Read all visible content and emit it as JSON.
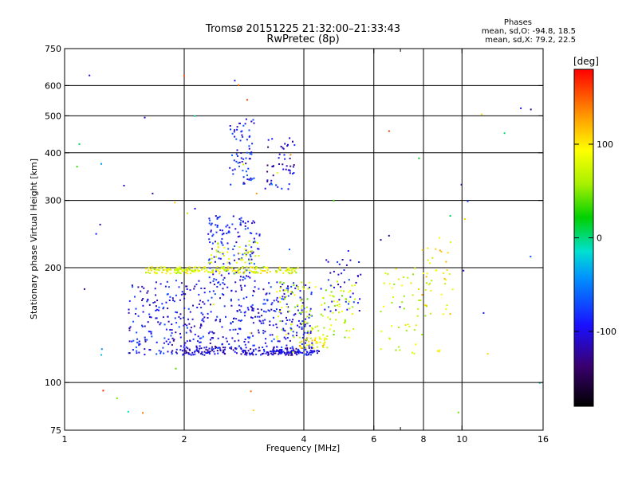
{
  "chart_data": {
    "type": "scatter",
    "title": "Tromsø 20151225 21:32:00–21:33:43",
    "subtitle": "RwPretec (8p)",
    "stats": {
      "heading": "Phases",
      "o_line": "mean, sd,O: -94.8, 18.5",
      "x_line": "mean, sd,X: 79.2, 22.5"
    },
    "xlabel": "Frequency [MHz]",
    "ylabel": "Stationary phase Virtual Height [km]",
    "x_scale": "log",
    "y_scale": "log",
    "xlim": [
      1,
      16
    ],
    "ylim": [
      75,
      750
    ],
    "x_ticks": [
      {
        "value": 1,
        "label": "1"
      },
      {
        "value": 2,
        "label": "2"
      },
      {
        "value": 4,
        "label": "4"
      },
      {
        "value": 6,
        "label": "6"
      },
      {
        "value": 8,
        "label": "8"
      },
      {
        "value": 10,
        "label": "10"
      },
      {
        "value": 16,
        "label": "16"
      }
    ],
    "x_minor_ticks": [
      7
    ],
    "x_gridlines": [
      2,
      4,
      6,
      8,
      10
    ],
    "y_ticks": [
      {
        "value": 75,
        "label": "75"
      },
      {
        "value": 100,
        "label": "100"
      },
      {
        "value": 200,
        "label": "200"
      },
      {
        "value": 300,
        "label": "300"
      },
      {
        "value": 400,
        "label": "400"
      },
      {
        "value": 500,
        "label": "500"
      },
      {
        "value": 600,
        "label": "600"
      },
      {
        "value": 750,
        "label": "750"
      }
    ],
    "y_gridlines": [
      100,
      200,
      300,
      400,
      500,
      600
    ],
    "grid": true,
    "colorbar": {
      "label": "[deg]",
      "range": [
        -180,
        180
      ],
      "ticks": [
        {
          "value": 100,
          "label": "100"
        },
        {
          "value": 0,
          "label": "0"
        },
        {
          "value": -100,
          "label": "-100"
        }
      ],
      "colormap": "rainbow (black-purple-blue-cyan-green-yellow-orange-red)"
    },
    "point_clusters": [
      {
        "x_range": [
          1.45,
          4.2
        ],
        "y_range": [
          118,
          185
        ],
        "phase": -95,
        "n": 520
      },
      {
        "x_range": [
          1.9,
          4.3
        ],
        "y_range": [
          118,
          124
        ],
        "phase": -110,
        "n": 160
      },
      {
        "x_range": [
          3.3,
          4.4
        ],
        "y_range": [
          119,
          122
        ],
        "phase": -100,
        "n": 60
      },
      {
        "x_range": [
          2.3,
          3.1
        ],
        "y_range": [
          185,
          275
        ],
        "phase": -90,
        "n": 140
      },
      {
        "x_range": [
          2.3,
          3.1
        ],
        "y_range": [
          205,
          235
        ],
        "phase": 75,
        "n": 40
      },
      {
        "x_range": [
          1.6,
          3.9
        ],
        "y_range": [
          193,
          201
        ],
        "phase": 80,
        "n": 210
      },
      {
        "x_range": [
          3.4,
          5.4
        ],
        "y_range": [
          130,
          185
        ],
        "phase": 70,
        "n": 120
      },
      {
        "x_range": [
          3.9,
          4.6
        ],
        "y_range": [
          123,
          132
        ],
        "phase": 95,
        "n": 40
      },
      {
        "x_range": [
          2.6,
          3.0
        ],
        "y_range": [
          330,
          490
        ],
        "phase": -90,
        "n": 70
      },
      {
        "x_range": [
          3.2,
          3.8
        ],
        "y_range": [
          320,
          440
        ],
        "phase": -110,
        "n": 50
      },
      {
        "x_range": [
          6.2,
          8.8
        ],
        "y_range": [
          118,
          200
        ],
        "phase": 80,
        "n": 60
      },
      {
        "x_range": [
          7.9,
          9.5
        ],
        "y_range": [
          150,
          240
        ],
        "phase": 100,
        "n": 30
      },
      {
        "x_range": [
          4.4,
          5.6
        ],
        "y_range": [
          150,
          210
        ],
        "phase": -95,
        "n": 40
      },
      {
        "x_range": [
          1.0,
          16.0
        ],
        "y_range": [
          80,
          640
        ],
        "phase": 0,
        "n": 60
      }
    ]
  }
}
